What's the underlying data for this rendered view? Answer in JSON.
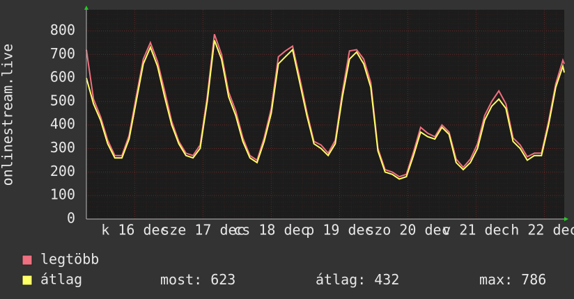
{
  "chart_data": {
    "type": "line",
    "ylabel": "onlinestream.live",
    "x": [
      0,
      2.5,
      5,
      7.5,
      10,
      12.5,
      15,
      17.5,
      20,
      22.5,
      25,
      27.5,
      30,
      32.5,
      35,
      37.5,
      40,
      42.5,
      45,
      47.5,
      50,
      52.5,
      55,
      57.5,
      60,
      62.5,
      65,
      67.5,
      70,
      72.5,
      75,
      77.5,
      80,
      82.5,
      85,
      87.5,
      90,
      92.5,
      95,
      97.5,
      100,
      102.5,
      105,
      107.5,
      110,
      112.5,
      115,
      117.5,
      120,
      122.5,
      125,
      127.5,
      130,
      132.5,
      135,
      137.5,
      140,
      142.5,
      145,
      147.5,
      150,
      152.5,
      155,
      157.5,
      160,
      162.5,
      165,
      167.5,
      168
    ],
    "xlim": [
      0,
      168
    ],
    "xticks": [
      {
        "value": 17,
        "label": "k 16 dec"
      },
      {
        "value": 41,
        "label": "sze 17 dec"
      },
      {
        "value": 65,
        "label": "cs 18 dec"
      },
      {
        "value": 89,
        "label": "p 19 dec"
      },
      {
        "value": 113,
        "label": "szo 20 dec"
      },
      {
        "value": 137,
        "label": "v 21 dec"
      },
      {
        "value": 161,
        "label": "h 22 dec"
      }
    ],
    "ylim": [
      0,
      890
    ],
    "yticks": [
      0,
      100,
      200,
      300,
      400,
      500,
      600,
      700,
      800
    ],
    "grid": true,
    "series": [
      {
        "name": "legtöbb",
        "color": "#f07080",
        "values": [
          720,
          510,
          435,
          335,
          270,
          270,
          355,
          520,
          680,
          750,
          670,
          545,
          415,
          330,
          280,
          270,
          315,
          520,
          786,
          700,
          540,
          460,
          345,
          270,
          250,
          345,
          470,
          690,
          715,
          735,
          600,
          455,
          330,
          315,
          280,
          335,
          540,
          715,
          720,
          680,
          580,
          300,
          210,
          200,
          180,
          190,
          285,
          390,
          365,
          350,
          400,
          370,
          255,
          220,
          255,
          320,
          440,
          500,
          545,
          490,
          345,
          315,
          265,
          280,
          280,
          415,
          575,
          675,
          660
        ]
      },
      {
        "name": "átlag",
        "color": "#ffff66",
        "values": [
          600,
          490,
          420,
          320,
          260,
          260,
          340,
          500,
          660,
          730,
          650,
          520,
          400,
          320,
          270,
          260,
          300,
          500,
          760,
          680,
          520,
          440,
          330,
          260,
          240,
          330,
          450,
          660,
          690,
          720,
          580,
          440,
          320,
          300,
          270,
          320,
          520,
          680,
          710,
          660,
          560,
          290,
          200,
          190,
          170,
          180,
          270,
          370,
          350,
          340,
          390,
          360,
          240,
          210,
          240,
          300,
          420,
          480,
          510,
          470,
          330,
          300,
          250,
          270,
          270,
          400,
          560,
          650,
          623
        ]
      }
    ],
    "stats": [
      {
        "label": "most:",
        "value": 623
      },
      {
        "label": "átlag:",
        "value": 432
      },
      {
        "label": "max:",
        "value": 786
      }
    ]
  }
}
